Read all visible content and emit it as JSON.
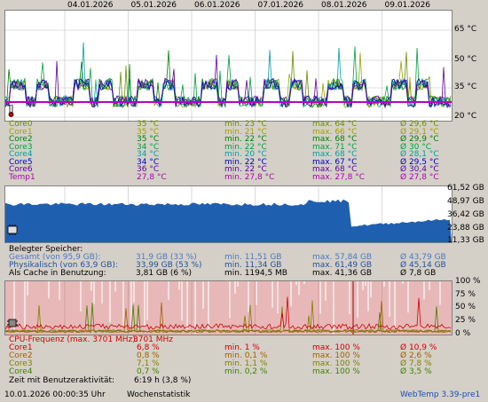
{
  "dates": [
    "04.01.2026",
    "05.01.2026",
    "06.01.2026",
    "07.01.2026",
    "08.01.2026",
    "09.01.2026"
  ],
  "temp": {
    "yticks": [
      "65 °C",
      "50 °C",
      "35 °C",
      "20 °C"
    ],
    "rows": [
      {
        "name": "Core0",
        "cur": "35 °C",
        "min": "min. 23 °C",
        "max": "max. 64 °C",
        "avg": "Ø 29,6 °C",
        "color": "#6a8f00"
      },
      {
        "name": "Core1",
        "cur": "35 °C",
        "min": "min. 21 °C",
        "max": "max. 66 °C",
        "avg": "Ø 29,1 °C",
        "color": "#a0a000"
      },
      {
        "name": "Core2",
        "cur": "35 °C",
        "min": "min. 22 °C",
        "max": "max. 68 °C",
        "avg": "Ø 29,9 °C",
        "color": "#008000"
      },
      {
        "name": "Core3",
        "cur": "34 °C",
        "min": "min. 22 °C",
        "max": "max. 71 °C",
        "avg": "Ø 30 °C",
        "color": "#00a040"
      },
      {
        "name": "Core4",
        "cur": "34 °C",
        "min": "min. 20 °C",
        "max": "max. 68 °C",
        "avg": "Ø 28,1 °C",
        "color": "#00a0a0"
      },
      {
        "name": "Core5",
        "cur": "34 °C",
        "min": "min. 22 °C",
        "max": "max. 67 °C",
        "avg": "Ø 29,5 °C",
        "color": "#0000c0"
      },
      {
        "name": "Core6",
        "cur": "36 °C",
        "min": "min. 22 °C",
        "max": "max. 68 °C",
        "avg": "Ø 30,4 °C",
        "color": "#6000a0"
      },
      {
        "name": "Temp1",
        "cur": "27,8 °C",
        "min": "min. 27,8 °C",
        "max": "max. 27,8 °C",
        "avg": "Ø 27,8 °C",
        "color": "#b000b0"
      }
    ]
  },
  "mem": {
    "yticks": [
      "61,52 GB",
      "48,97 GB",
      "36,42 GB",
      "23,88 GB",
      "11,33 GB"
    ],
    "heading": "Belegter Speicher:",
    "rows": [
      {
        "name": "Gesamt (von 95,9 GB):",
        "cur": "31,9 GB (33 %)",
        "min": "min. 11,51 GB",
        "max": "max. 57,84 GB",
        "avg": "Ø 43,79 GB",
        "color": "#4a78c8"
      },
      {
        "name": "Physikalisch (von 63,9 GB):",
        "cur": "33,99 GB (53 %)",
        "min": "min. 11,34 GB",
        "max": "max. 61,49 GB",
        "avg": "Ø 45,14 GB",
        "color": "#2050a0"
      },
      {
        "name": "Als Cache in Benutzung:",
        "cur": "3,81 GB (6 %)",
        "min": "min. 1194,5 MB",
        "max": "max. 41,36 GB",
        "avg": "Ø 7,8 GB",
        "color": "#000000"
      }
    ]
  },
  "cpu": {
    "yticks": [
      "100 %",
      "75 %",
      "50 %",
      "25 %",
      "0 %"
    ],
    "freq_label": "CPU-Frequenz (max. 3701 MHz):",
    "freq_value": "3701 MHz",
    "rows": [
      {
        "name": "Core1",
        "cur": "6,8 %",
        "min": "min. 1 %",
        "max": "max. 100 %",
        "avg": "Ø 10,9 %",
        "color": "#d00000"
      },
      {
        "name": "Core2",
        "cur": "0,8 %",
        "min": "min. 0,1 %",
        "max": "max. 100 %",
        "avg": "Ø 2,6 %",
        "color": "#a06000"
      },
      {
        "name": "Core3",
        "cur": "7,1 %",
        "min": "min. 1,1 %",
        "max": "max. 100 %",
        "avg": "Ø 7,8 %",
        "color": "#808000"
      },
      {
        "name": "Core4",
        "cur": "0,7 %",
        "min": "min. 0,2 %",
        "max": "max. 100 %",
        "avg": "Ø 3,5 %",
        "color": "#408000"
      }
    ],
    "activity_label": "Zeit mit Benutzeraktivität:",
    "activity_value": "6:19 h (3,8 %)"
  },
  "footer": {
    "timestamp": "10.01.2026 00:00:35 Uhr",
    "stat": "Wochenstatistik",
    "version": "WebTemp 3.39-pre1"
  }
}
